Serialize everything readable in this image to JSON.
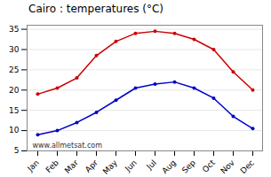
{
  "chart_data": {
    "type": "line",
    "title": "Cairo : temperatures (°C)",
    "categories": [
      "Jan",
      "Feb",
      "Mar",
      "Apr",
      "May",
      "Jun",
      "Jul",
      "Aug",
      "Sep",
      "Oct",
      "Nov",
      "Dec"
    ],
    "series": [
      {
        "color": "#cc0000",
        "marker": "circle",
        "values": [
          19,
          20.5,
          23,
          28.5,
          32,
          34,
          34.5,
          34,
          32.5,
          30,
          24.5,
          20
        ]
      },
      {
        "color": "#0000cc",
        "marker": "circle",
        "values": [
          9,
          10,
          12,
          14.5,
          17.5,
          20.5,
          21.5,
          22,
          20.5,
          18,
          13.5,
          10.5
        ]
      }
    ],
    "ylim": [
      5,
      36
    ],
    "yticks": [
      5,
      10,
      15,
      20,
      25,
      30,
      35
    ],
    "grid": true,
    "annotations": [
      "www.allmetsat.com"
    ]
  }
}
